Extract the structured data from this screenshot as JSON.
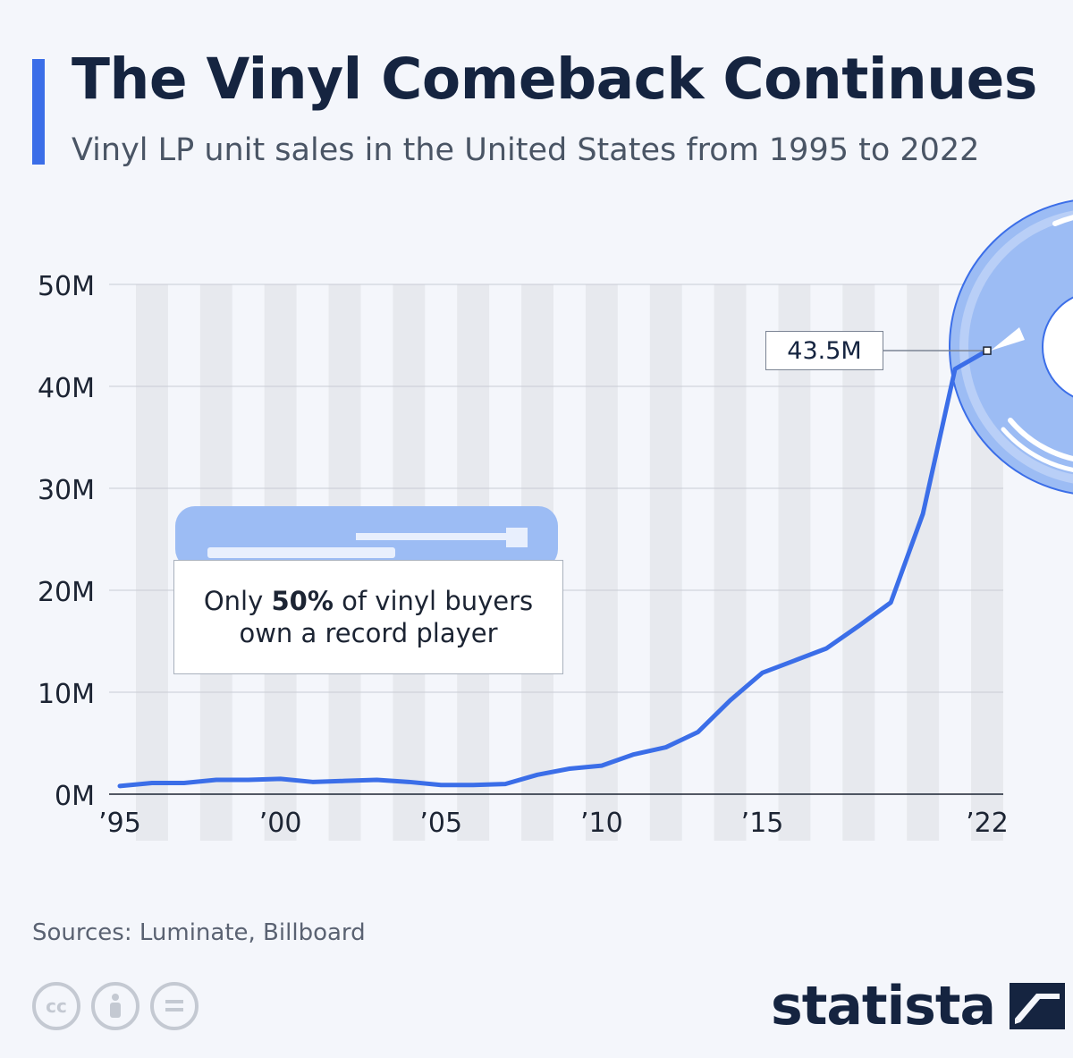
{
  "header": {
    "title": "The Vinyl Comeback Continues",
    "subtitle": "Vinyl LP unit sales in the United States from 1995 to 2022"
  },
  "callout": {
    "text_before": "Only ",
    "text_bold": "50%",
    "text_after_line1": " of vinyl buyers",
    "text_line2": "own a record player"
  },
  "footer": {
    "source": "Sources: Luminate, Billboard",
    "license_icons": [
      "cc-icon",
      "attribution-icon",
      "no-derivatives-icon"
    ],
    "brand": "statista"
  },
  "colors": {
    "line": "#3b6ee8",
    "title": "#152440",
    "accent_bar": "#3b6ee8",
    "stripe": "#e7e9ee",
    "grid": "#c8ccd4",
    "illustration": "#9cbcf4"
  },
  "chart_data": {
    "type": "line",
    "title": "The Vinyl Comeback Continues",
    "subtitle": "Vinyl LP unit sales in the United States from 1995 to 2022",
    "x": [
      1995,
      1996,
      1997,
      1998,
      1999,
      2000,
      2001,
      2002,
      2003,
      2004,
      2005,
      2006,
      2007,
      2008,
      2009,
      2010,
      2011,
      2012,
      2013,
      2014,
      2015,
      2016,
      2017,
      2018,
      2019,
      2020,
      2021,
      2022
    ],
    "series": [
      {
        "values": [
          0.8,
          1.1,
          1.1,
          1.4,
          1.4,
          1.5,
          1.2,
          1.3,
          1.4,
          1.2,
          0.9,
          0.9,
          1.0,
          1.9,
          2.5,
          2.8,
          3.9,
          4.6,
          6.1,
          9.2,
          11.9,
          13.1,
          14.3,
          16.5,
          18.8,
          27.5,
          41.7,
          43.5
        ]
      }
    ],
    "x_tick_labels": [
      {
        "x": 1995,
        "label": "’95"
      },
      {
        "x": 2000,
        "label": "’00"
      },
      {
        "x": 2005,
        "label": "’05"
      },
      {
        "x": 2010,
        "label": "’10"
      },
      {
        "x": 2015,
        "label": "’15"
      },
      {
        "x": 2022,
        "label": "’22"
      }
    ],
    "y_ticks": [
      0,
      10,
      20,
      30,
      40,
      50
    ],
    "y_tick_labels": [
      "0M",
      "10M",
      "20M",
      "30M",
      "40M",
      "50M"
    ],
    "ylim": [
      0,
      50
    ],
    "xlim": [
      1995,
      2022
    ],
    "units": "M",
    "grid": true,
    "annotations": [
      {
        "x": 2022,
        "y": 43.5,
        "text": "43.5M"
      }
    ],
    "xlabel": "",
    "ylabel": ""
  }
}
